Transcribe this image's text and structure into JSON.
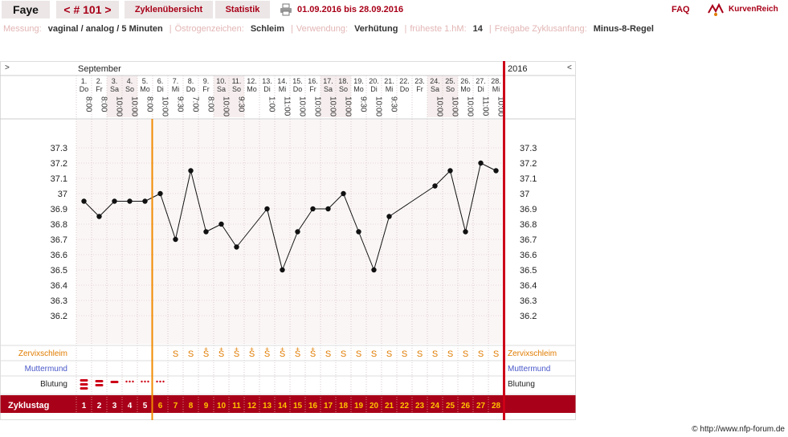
{
  "header": {
    "user": "Faye",
    "cycle_label": "< # 101 >",
    "overview_tab": "Zyklenübersicht",
    "stats_tab": "Statistik",
    "date_range": "01.09.2016 bis 28.09.2016",
    "faq": "FAQ",
    "logo": "KurvenReich"
  },
  "settings": [
    {
      "label": "Messung:",
      "value": "vaginal / analog / 5 Minuten"
    },
    {
      "label": "Östrogenzeichen:",
      "value": "Schleim"
    },
    {
      "label": "Verwendung:",
      "value": "Verhütung"
    },
    {
      "label": "früheste 1.hM:",
      "value": "14"
    },
    {
      "label": "Freigabe Zyklusanfang:",
      "value": "Minus-8-Regel"
    }
  ],
  "chart_data": {
    "type": "line",
    "month": "September",
    "year": "2016",
    "nav_prev": ">",
    "nav_next": "<",
    "days": [
      {
        "n": "1.",
        "w": "Do",
        "t": "8:00"
      },
      {
        "n": "2.",
        "w": "Fr",
        "t": "8:00"
      },
      {
        "n": "3.",
        "w": "Sa",
        "t": "10:00"
      },
      {
        "n": "4.",
        "w": "So",
        "t": "10:00"
      },
      {
        "n": "5.",
        "w": "Mo",
        "t": "8:00"
      },
      {
        "n": "6.",
        "w": "Di",
        "t": "10:00"
      },
      {
        "n": "7.",
        "w": "Mi",
        "t": "9:30"
      },
      {
        "n": "8.",
        "w": "Do",
        "t": "7:00"
      },
      {
        "n": "9.",
        "w": "Fr",
        "t": "8:00"
      },
      {
        "n": "10.",
        "w": "Sa",
        "t": "10:00"
      },
      {
        "n": "11.",
        "w": "So",
        "t": "9:30"
      },
      {
        "n": "12.",
        "w": "Mo",
        "t": ""
      },
      {
        "n": "13.",
        "w": "Di",
        "t": "1:00"
      },
      {
        "n": "14.",
        "w": "Mi",
        "t": "11:00"
      },
      {
        "n": "15.",
        "w": "Do",
        "t": "10:00"
      },
      {
        "n": "16.",
        "w": "Fr",
        "t": "10:00"
      },
      {
        "n": "17.",
        "w": "Sa",
        "t": "10:00"
      },
      {
        "n": "18.",
        "w": "So",
        "t": "10:00"
      },
      {
        "n": "19.",
        "w": "Mo",
        "t": "9:30"
      },
      {
        "n": "20.",
        "w": "Di",
        "t": "10:00"
      },
      {
        "n": "21.",
        "w": "Mi",
        "t": "9:30"
      },
      {
        "n": "22.",
        "w": "Do",
        "t": ""
      },
      {
        "n": "23.",
        "w": "Fr",
        "t": ""
      },
      {
        "n": "24.",
        "w": "Sa",
        "t": "10:00"
      },
      {
        "n": "25.",
        "w": "So",
        "t": "10:00"
      },
      {
        "n": "26.",
        "w": "Mo",
        "t": "10:00"
      },
      {
        "n": "27.",
        "w": "Di",
        "t": "11:00"
      },
      {
        "n": "28.",
        "w": "Mi",
        "t": "10:00"
      }
    ],
    "temps": [
      36.95,
      36.85,
      36.95,
      36.95,
      36.95,
      37.0,
      36.7,
      37.15,
      36.75,
      36.8,
      36.65,
      null,
      36.9,
      36.5,
      36.75,
      36.9,
      36.9,
      37.0,
      36.75,
      36.5,
      36.85,
      null,
      null,
      37.05,
      37.15,
      36.75,
      37.2,
      37.15
    ],
    "y_ticks": [
      "37.3",
      "37.2",
      "37.1",
      "37",
      "36.9",
      "36.8",
      "36.7",
      "36.6",
      "36.5",
      "36.4",
      "36.3",
      "36.2"
    ],
    "ylim": [
      36.2,
      37.3
    ],
    "mucus": [
      "",
      "",
      "",
      "",
      "",
      "",
      "S",
      "S",
      "S+",
      "S+",
      "S+",
      "S+",
      "S+",
      "S+",
      "S+",
      "S+",
      "S",
      "S",
      "S",
      "S",
      "S",
      "S",
      "S",
      "S",
      "S",
      "S",
      "S",
      "S"
    ],
    "bleeding": [
      "heavy",
      "medium",
      "light",
      "spot",
      "spot",
      "spot",
      "",
      "",
      "",
      "",
      "",
      "",
      "",
      "",
      "",
      "",
      "",
      "",
      "",
      "",
      "",
      "",
      "",
      "",
      "",
      "",
      "",
      ""
    ],
    "row_labels": {
      "mucus": "Zervixschleim",
      "cervix": "Muttermund",
      "bleeding": "Blutung",
      "cycleday": "Zyklustag"
    },
    "cycle_days": [
      "1",
      "2",
      "3",
      "4",
      "5",
      "6",
      "7",
      "8",
      "9",
      "10",
      "11",
      "12",
      "13",
      "14",
      "15",
      "16",
      "17",
      "18",
      "19",
      "20",
      "21",
      "22",
      "23",
      "24",
      "25",
      "26",
      "27",
      "28"
    ],
    "ovulation_line_after_day": 5
  },
  "footer": "© http://www.nfp-forum.de",
  "colors": {
    "accent": "#a80018",
    "orange": "#e07c00",
    "blue": "#4857c8",
    "grid": "#f6eeee"
  }
}
